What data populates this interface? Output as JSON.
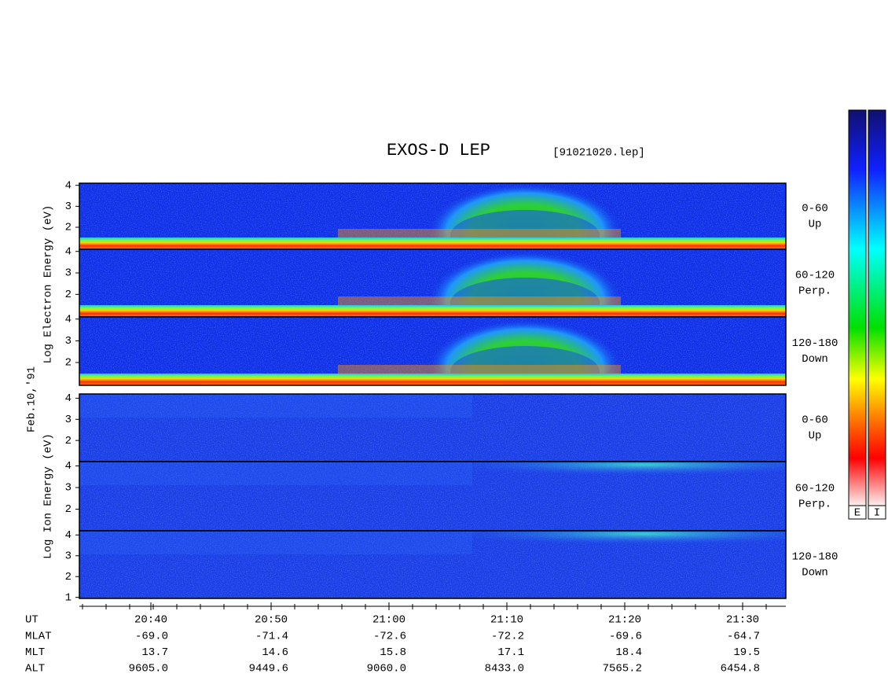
{
  "title": "EXOS-D LEP",
  "file": "[91021020.lep]",
  "date": "Feb.10,'91",
  "groups": [
    {
      "axis_label": "Log Electron Energy (eV)",
      "panels": [
        {
          "angle": "0-60",
          "direction": "Up",
          "ylim": [
            0.95,
            4.1
          ],
          "yticks": [
            2,
            3,
            4
          ]
        },
        {
          "angle": "60-120",
          "direction": "Perp.",
          "ylim": [
            0.95,
            4.1
          ],
          "yticks": [
            2,
            3,
            4
          ]
        },
        {
          "angle": "120-180",
          "direction": "Down",
          "ylim": [
            0.95,
            4.1
          ],
          "yticks": [
            2,
            3,
            4
          ]
        }
      ]
    },
    {
      "axis_label": "Log Ion Energy (eV)",
      "panels": [
        {
          "angle": "0-60",
          "direction": "Up",
          "ylim": [
            1.0,
            4.2
          ],
          "yticks": [
            2,
            3,
            4
          ]
        },
        {
          "angle": "60-120",
          "direction": "Perp.",
          "ylim": [
            1.0,
            4.2
          ],
          "yticks": [
            2,
            3,
            4
          ]
        },
        {
          "angle": "120-180",
          "direction": "Down",
          "ylim": [
            0.95,
            4.2
          ],
          "yticks": [
            1,
            2,
            3,
            4
          ]
        }
      ]
    }
  ],
  "time_axis": {
    "label": "UT",
    "ticks": [
      "20:40",
      "20:50",
      "21:00",
      "21:10",
      "21:20",
      "21:30"
    ]
  },
  "ephemeris": [
    {
      "label": "MLAT",
      "values": [
        "-69.0",
        "-71.4",
        "-72.6",
        "-72.2",
        "-69.6",
        "-64.7"
      ]
    },
    {
      "label": "MLT",
      "values": [
        "13.7",
        "14.6",
        "15.8",
        "17.1",
        "18.4",
        "19.5"
      ]
    },
    {
      "label": "ALT",
      "values": [
        "9605.0",
        "9449.6",
        "9060.0",
        "8433.0",
        "7565.2",
        "6454.8"
      ]
    }
  ],
  "colorbars": [
    "E",
    "I"
  ]
}
